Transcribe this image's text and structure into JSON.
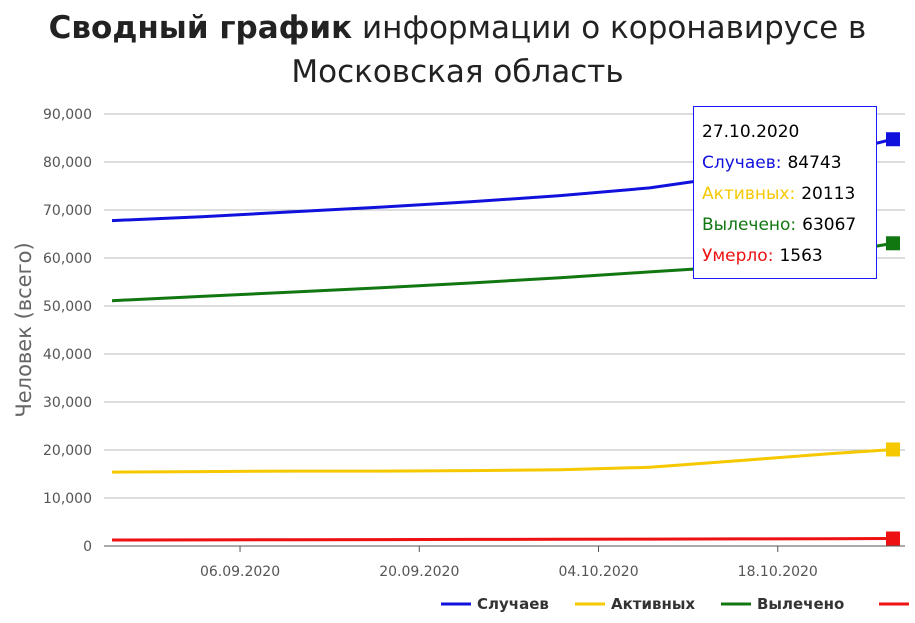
{
  "title": {
    "bold": "Сводный график",
    "rest": "информации о коронавирусе в",
    "line2": "Московская область"
  },
  "chart_data": {
    "type": "line",
    "ylabel": "Человек (всего)",
    "ylim": [
      0,
      90000
    ],
    "yticks": [
      0,
      10000,
      20000,
      30000,
      40000,
      50000,
      60000,
      70000,
      80000,
      90000
    ],
    "ytick_labels": [
      "0",
      "10,000",
      "20,000",
      "30,000",
      "40,000",
      "50,000",
      "60,000",
      "70,000",
      "80,000",
      "90,000"
    ],
    "x_start": "2020-08-27",
    "x_end": "2020-10-27",
    "xtick_dates": [
      "2020-09-06",
      "2020-09-20",
      "2020-10-04",
      "2020-10-18"
    ],
    "xtick_labels": [
      "06.09.2020",
      "20.09.2020",
      "04.10.2020",
      "18.10.2020"
    ],
    "grid": true,
    "legend_position": "bottom-right",
    "series": [
      {
        "name": "Случаев",
        "color": "#1111dd",
        "x": [
          "2020-08-27",
          "2020-09-03",
          "2020-09-10",
          "2020-09-17",
          "2020-09-24",
          "2020-10-01",
          "2020-10-08",
          "2020-10-15",
          "2020-10-22",
          "2020-10-27"
        ],
        "y": [
          67800,
          68600,
          69600,
          70600,
          71700,
          73000,
          74600,
          77300,
          81500,
          84743
        ]
      },
      {
        "name": "Активных",
        "color": "#f5c800",
        "x": [
          "2020-08-27",
          "2020-09-03",
          "2020-09-10",
          "2020-09-17",
          "2020-09-24",
          "2020-10-01",
          "2020-10-08",
          "2020-10-15",
          "2020-10-22",
          "2020-10-27"
        ],
        "y": [
          15400,
          15500,
          15600,
          15600,
          15700,
          15900,
          16400,
          17800,
          19200,
          20113
        ]
      },
      {
        "name": "Вылечено",
        "color": "#117711",
        "x": [
          "2020-08-27",
          "2020-09-03",
          "2020-09-10",
          "2020-09-17",
          "2020-09-24",
          "2020-10-01",
          "2020-10-08",
          "2020-10-15",
          "2020-10-22",
          "2020-10-27"
        ],
        "y": [
          51100,
          52000,
          52900,
          53800,
          54800,
          55900,
          57100,
          58300,
          60800,
          63067
        ]
      },
      {
        "name": "Умерло",
        "color": "#ee1111",
        "x": [
          "2020-08-27",
          "2020-09-03",
          "2020-09-10",
          "2020-09-17",
          "2020-09-24",
          "2020-10-01",
          "2020-10-08",
          "2020-10-15",
          "2020-10-22",
          "2020-10-27"
        ],
        "y": [
          1250,
          1280,
          1310,
          1340,
          1370,
          1400,
          1440,
          1480,
          1520,
          1563
        ]
      }
    ]
  },
  "tooltip": {
    "date": "27.10.2020",
    "rows": [
      {
        "label": "Случаев:",
        "value": "84743",
        "color": "#1111dd"
      },
      {
        "label": "Активных:",
        "value": "20113",
        "color": "#f5c800"
      },
      {
        "label": "Вылечено:",
        "value": "63067",
        "color": "#117711"
      },
      {
        "label": "Умерло:",
        "value": "1563",
        "color": "#ee1111"
      }
    ]
  }
}
